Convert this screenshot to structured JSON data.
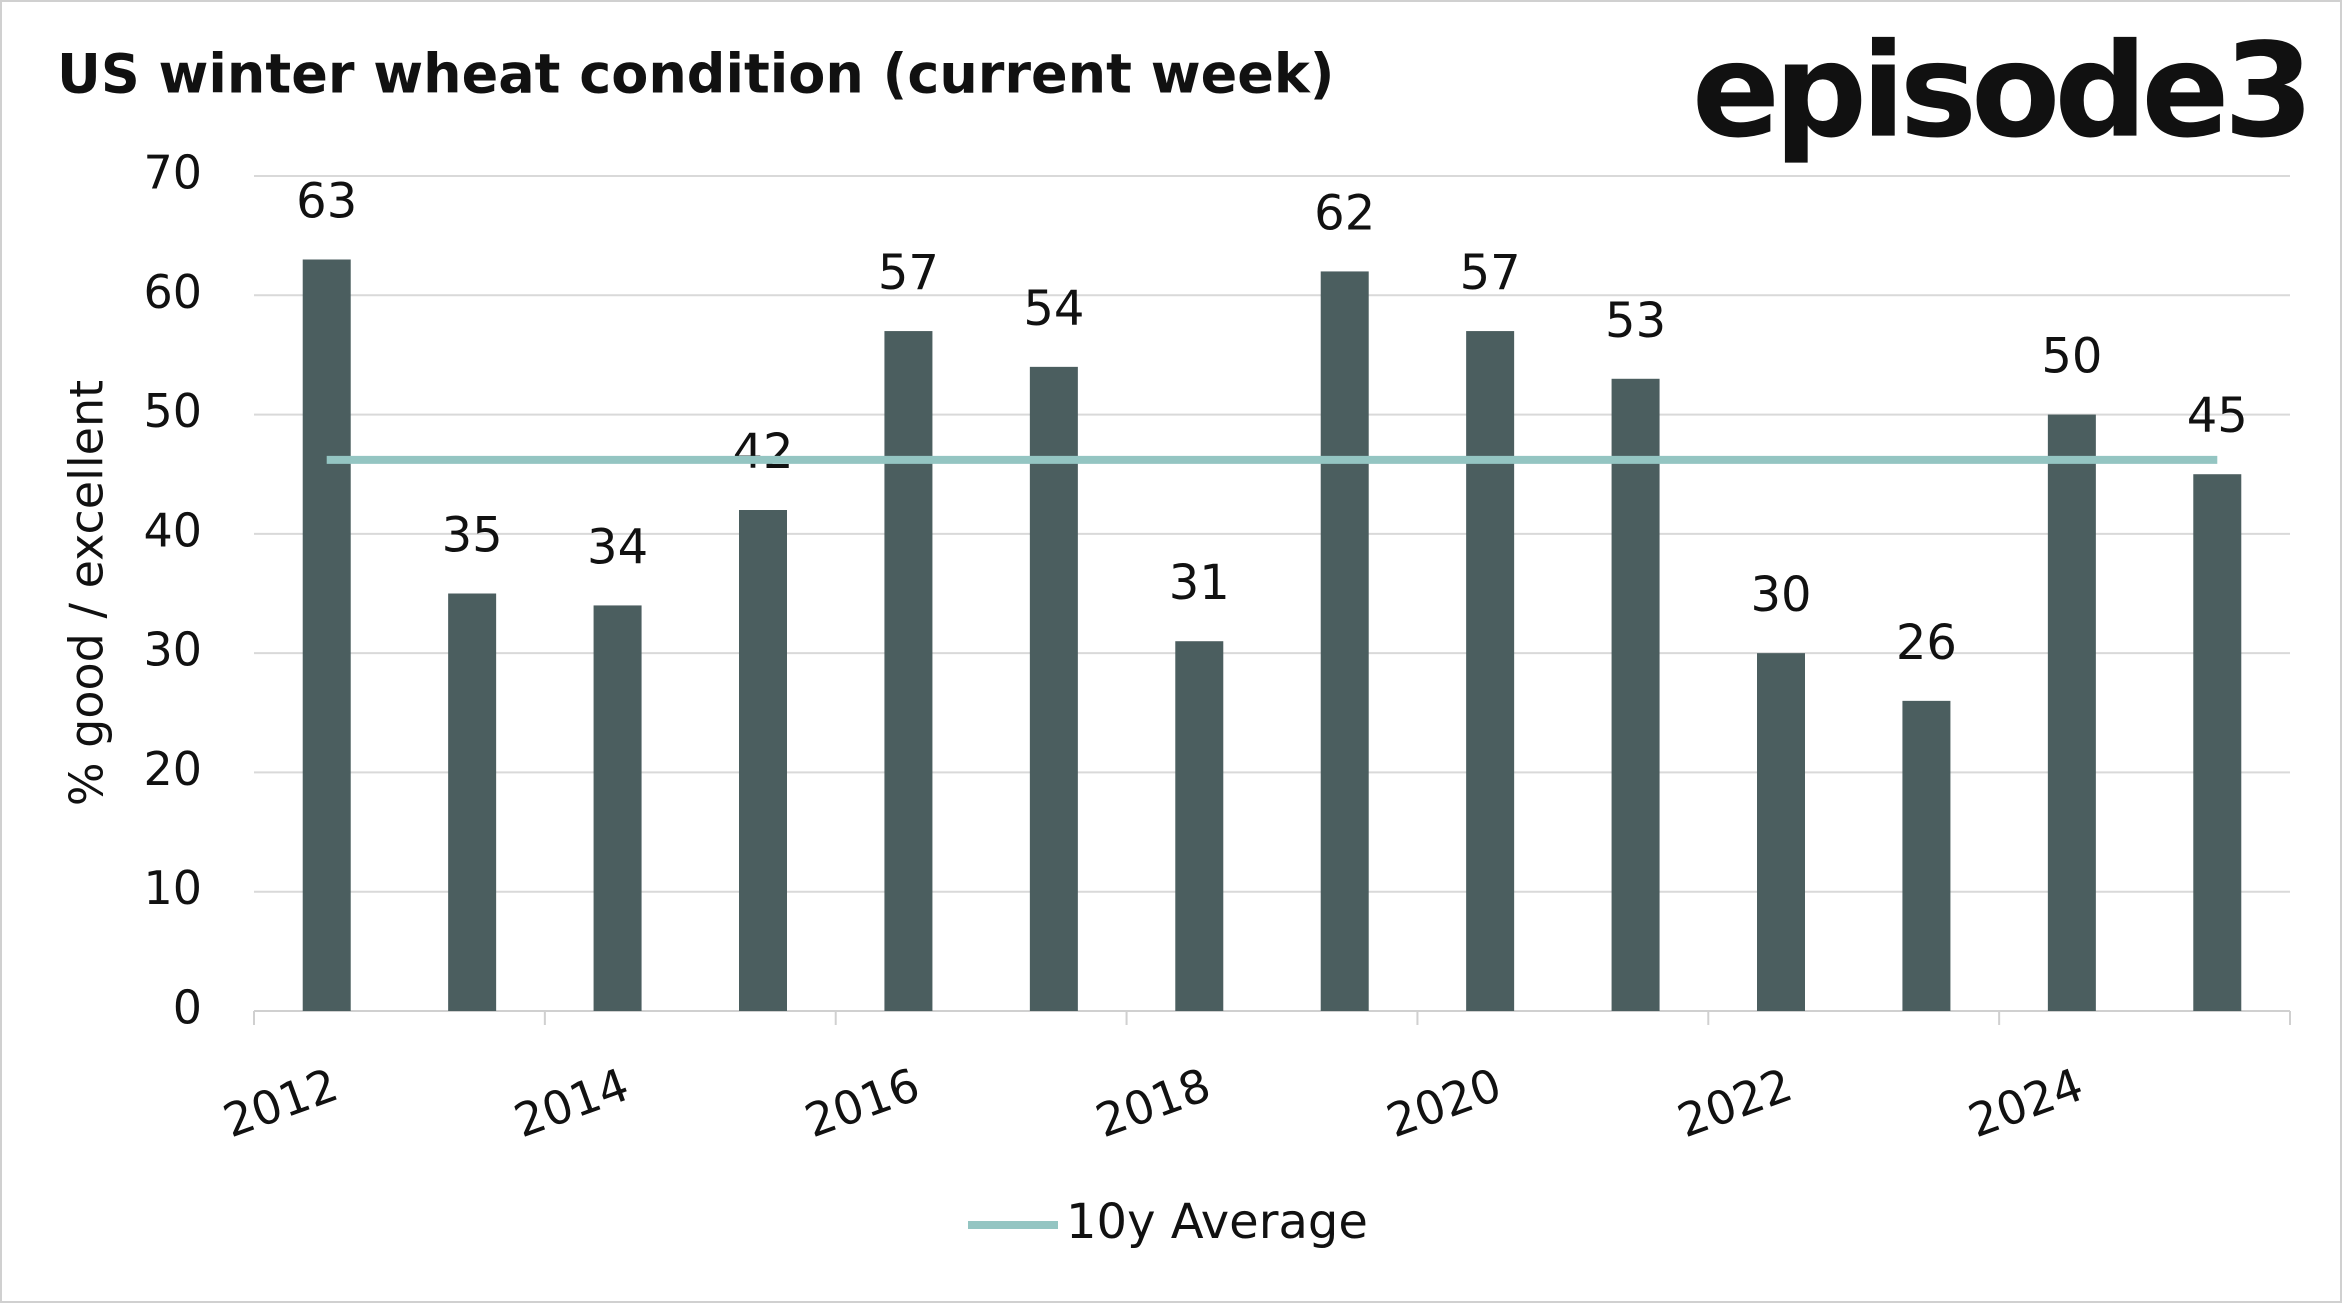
{
  "chart_data": {
    "type": "bar",
    "title": "US winter wheat condition (current week)",
    "brand": "episode3",
    "y_label": "% good / excellent",
    "categories": [
      "2012",
      null,
      "2014",
      null,
      "2016",
      null,
      "2018",
      null,
      "2020",
      null,
      "2022",
      null,
      "2024",
      null
    ],
    "values": [
      63,
      35,
      34,
      42,
      57,
      54,
      31,
      62,
      57,
      53,
      30,
      26,
      50,
      45
    ],
    "color": "#4b5e5f",
    "series": [
      {
        "name": "10y Average",
        "color": "#94c5c2",
        "values": [
          46.2,
          46.2,
          46.2,
          46.2,
          46.2,
          46.2,
          46.2,
          46.2,
          46.2,
          46.2,
          46.2,
          46.2,
          46.2,
          46.2
        ]
      }
    ],
    "ylim": [
      0,
      70
    ],
    "yticks": [
      0,
      10,
      20,
      30,
      40,
      50,
      60,
      70
    ],
    "grid": true,
    "legend": "bottom"
  }
}
